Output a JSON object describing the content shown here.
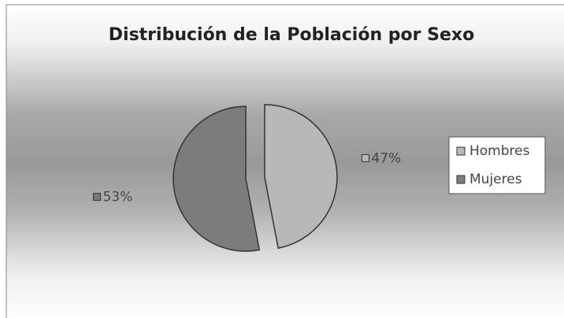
{
  "chart_data": {
    "type": "pie",
    "title": "Distribución de la Población por Sexo",
    "categories": [
      "Hombres",
      "Mujeres"
    ],
    "values": [
      47,
      53
    ],
    "value_labels": [
      "47%",
      "53%"
    ],
    "colors": [
      "#b8b8b8",
      "#7c7c7c"
    ],
    "legend": "right"
  }
}
